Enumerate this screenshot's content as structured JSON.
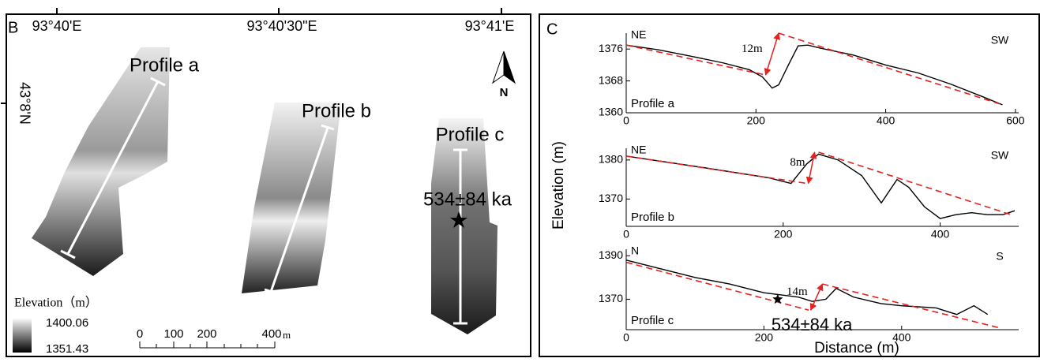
{
  "map": {
    "panel_letter": "B",
    "longitudes": [
      "93°40'E",
      "93°40'30\"E",
      "93°41'E"
    ],
    "latitude": "43°8'N",
    "profiles": [
      "Profile a",
      "Profile b",
      "Profile c"
    ],
    "sample_age": "534±84 ka",
    "north": "N",
    "legend": {
      "title": "Elevation（m）",
      "max": "1400.06",
      "min": "1351.43"
    },
    "scale": {
      "labels": [
        "0",
        "100",
        "200",
        "400"
      ],
      "unit": "m"
    }
  },
  "panel_c": {
    "panel_letter": "C",
    "ylabel": "Elevation (m)",
    "xlabel": "Distance (m)"
  },
  "chart_data": [
    {
      "type": "line",
      "direction_left": "NE",
      "direction_right": "SW",
      "profile_label": "Profile a",
      "xlim": [
        0,
        605
      ],
      "xticks": [
        0,
        200,
        400,
        600
      ],
      "ylim": [
        1360,
        1380
      ],
      "yticks": [
        1360,
        1368,
        1376
      ],
      "series": [
        {
          "color": "#000000",
          "x": [
            0,
            50,
            100,
            150,
            190,
            210,
            225,
            235,
            250,
            265,
            280,
            300,
            350,
            400,
            450,
            500,
            550,
            580
          ],
          "values": [
            1377,
            1375.8,
            1374.2,
            1372.5,
            1370.8,
            1369,
            1366.2,
            1367,
            1372,
            1376.8,
            1377,
            1376.2,
            1374.5,
            1372,
            1370,
            1367.2,
            1364,
            1362
          ]
        },
        {
          "color": "#e8201e",
          "dash": true,
          "x": [
            0,
            215,
            225,
            235,
            580
          ],
          "values": [
            1377,
            1369.5,
            null,
            1380,
            1362
          ]
        }
      ],
      "arrows": [
        {
          "text": "12m",
          "x": [
            215,
            235
          ],
          "y": [
            1369.5,
            1380
          ]
        }
      ]
    },
    {
      "type": "line",
      "direction_left": "NE",
      "direction_right": "SW",
      "profile_label": "Profile b",
      "xlim": [
        0,
        500
      ],
      "xticks": [
        0,
        200,
        400
      ],
      "ylim": [
        1363,
        1383
      ],
      "yticks": [
        1370,
        1380
      ],
      "series": [
        {
          "color": "#000000",
          "x": [
            0,
            100,
            180,
            210,
            230,
            245,
            270,
            300,
            325,
            345,
            360,
            380,
            400,
            420,
            440,
            460,
            480,
            495
          ],
          "values": [
            1381,
            1378,
            1375.5,
            1374,
            1379,
            1381.5,
            1380,
            1376,
            1369,
            1375,
            1373,
            1368,
            1365,
            1366,
            1366.5,
            1366,
            1366,
            1367
          ]
        },
        {
          "color": "#e8201e",
          "dash": true,
          "x": [
            0,
            230,
            238,
            245,
            490
          ],
          "values": [
            1381,
            1374,
            null,
            1382,
            1366
          ]
        }
      ],
      "arrows": [
        {
          "text": "8m",
          "x": [
            232,
            240
          ],
          "y": [
            1374,
            1382
          ]
        }
      ]
    },
    {
      "type": "line",
      "direction_left": "N",
      "direction_right": "S",
      "profile_label": "Profile c",
      "xlim": [
        0,
        570
      ],
      "xticks": [
        0,
        200,
        400
      ],
      "ylim": [
        1356,
        1393
      ],
      "yticks": [
        1370,
        1390
      ],
      "series": [
        {
          "color": "#000000",
          "x": [
            0,
            50,
            100,
            150,
            200,
            250,
            270,
            290,
            305,
            330,
            370,
            400,
            450,
            480,
            505,
            525
          ],
          "values": [
            1388,
            1384,
            1380,
            1377,
            1373,
            1371,
            1369,
            1370,
            1375,
            1371,
            1368,
            1367,
            1366,
            1363,
            1367,
            1363
          ]
        },
        {
          "color": "#e8201e",
          "dash": true,
          "x": [
            0,
            265,
            275,
            285,
            540
          ],
          "values": [
            1387,
            1365,
            null,
            1377,
            1357
          ]
        }
      ],
      "arrows": [
        {
          "text": "14m",
          "x": [
            268,
            285
          ],
          "y": [
            1365,
            1377
          ]
        }
      ],
      "sample": {
        "x": 220,
        "y": 1370,
        "label": "534±84 ka"
      }
    }
  ]
}
